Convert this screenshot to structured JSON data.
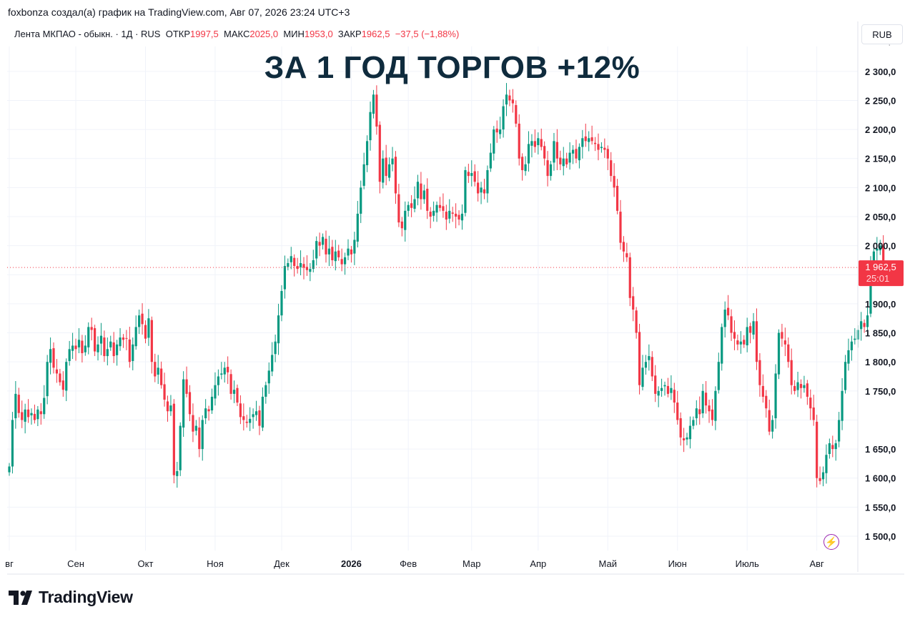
{
  "attribution": "foxbonza создал(а) график на TradingView.com, Авг 07, 2026 23:24 UTC+3",
  "legend": {
    "symbol": "Лента МКПАО - обыкн. · 1Д · RUS",
    "open_label": "ОТКР",
    "open_value": "1997,5",
    "high_label": "МАКС",
    "high_value": "2025,0",
    "low_label": "МИН",
    "low_value": "1953,0",
    "close_label": "ЗАКР",
    "close_value": "1962,5",
    "change": "−37,5 (−1,88%)"
  },
  "currency_button": "RUB",
  "scroll_marker": "˙",
  "headline": "ЗА 1 ГОД ТОРГОВ +12%",
  "brand": "TradingView",
  "colors": {
    "up": "#089981",
    "down": "#f23645",
    "grid": "#f0f3fa",
    "headline": "#0f2b3d"
  },
  "chart_data": {
    "type": "candlestick",
    "ylim": [
      1475,
      2330
    ],
    "y_ticks": [
      1500,
      1550,
      1600,
      1650,
      1700,
      1750,
      1800,
      1850,
      1900,
      1950,
      2000,
      2050,
      2100,
      2150,
      2200,
      2250,
      2300
    ],
    "y_tick_labels": [
      "1 500,0",
      "1 550,0",
      "1 600,0",
      "1 650,0",
      "",
      "1 750,0",
      "1 800,0",
      "1 850,0",
      "1 900,0",
      "",
      "2 000,0",
      "2 050,0",
      "2 100,0",
      "2 150,0",
      "2 200,0",
      "2 250,0",
      "2 300,0"
    ],
    "x_axis_labels": [
      {
        "label": "вг",
        "bar": 0
      },
      {
        "label": "Сен",
        "bar": 21
      },
      {
        "label": "Окт",
        "bar": 43
      },
      {
        "label": "Ноя",
        "bar": 65
      },
      {
        "label": "Дек",
        "bar": 86
      },
      {
        "label": "2026",
        "bar": 108
      },
      {
        "label": "Фев",
        "bar": 126
      },
      {
        "label": "Мар",
        "bar": 146
      },
      {
        "label": "Апр",
        "bar": 167
      },
      {
        "label": "Май",
        "bar": 189
      },
      {
        "label": "Июн",
        "bar": 211
      },
      {
        "label": "Июль",
        "bar": 233
      },
      {
        "label": "Авг",
        "bar": 255
      }
    ],
    "last_price": {
      "value": 1962.5,
      "label": "1 962,5",
      "countdown": "25:01"
    },
    "close": [
      1620,
      1700,
      1745,
      1712,
      1700,
      1718,
      1705,
      1712,
      1700,
      1718,
      1710,
      1738,
      1800,
      1822,
      1790,
      1780,
      1765,
      1752,
      1800,
      1822,
      1828,
      1822,
      1838,
      1815,
      1828,
      1860,
      1855,
      1818,
      1830,
      1845,
      1810,
      1822,
      1835,
      1810,
      1830,
      1842,
      1838,
      1840,
      1800,
      1830,
      1860,
      1880,
      1865,
      1840,
      1875,
      1800,
      1775,
      1790,
      1760,
      1735,
      1715,
      1725,
      1605,
      1612,
      1690,
      1770,
      1745,
      1710,
      1680,
      1690,
      1650,
      1700,
      1720,
      1715,
      1740,
      1760,
      1775,
      1780,
      1790,
      1782,
      1745,
      1752,
      1730,
      1705,
      1700,
      1695,
      1702,
      1710,
      1715,
      1690,
      1740,
      1760,
      1785,
      1812,
      1835,
      1880,
      1922,
      1965,
      1970,
      1982,
      1965,
      1960,
      1970,
      1962,
      1958,
      1960,
      1975,
      2008,
      2000,
      2015,
      1985,
      1995,
      1975,
      1990,
      1980,
      1968,
      1980,
      1995,
      1985,
      2010,
      2055,
      2100,
      2140,
      2180,
      2230,
      2260,
      2205,
      2110,
      2150,
      2120,
      2140,
      2150,
      2090,
      2040,
      2030,
      2060,
      2070,
      2065,
      2080,
      2110,
      2080,
      2095,
      2060,
      2050,
      2060,
      2070,
      2065,
      2060,
      2045,
      2060,
      2055,
      2050,
      2045,
      2055,
      2130,
      2120,
      2125,
      2110,
      2090,
      2100,
      2090,
      2130,
      2160,
      2200,
      2195,
      2200,
      2240,
      2260,
      2250,
      2245,
      2210,
      2150,
      2130,
      2140,
      2175,
      2180,
      2170,
      2185,
      2170,
      2150,
      2120,
      2140,
      2180,
      2150,
      2140,
      2150,
      2140,
      2160,
      2165,
      2150,
      2170,
      2185,
      2180,
      2185,
      2180,
      2175,
      2165,
      2170,
      2165,
      2150,
      2120,
      2100,
      2060,
      2005,
      1990,
      1980,
      1910,
      1890,
      1850,
      1760,
      1790,
      1800,
      1810,
      1775,
      1745,
      1750,
      1755,
      1760,
      1745,
      1755,
      1730,
      1700,
      1670,
      1665,
      1670,
      1690,
      1700,
      1720,
      1710,
      1750,
      1725,
      1715,
      1700,
      1750,
      1800,
      1860,
      1890,
      1880,
      1850,
      1840,
      1830,
      1835,
      1830,
      1860,
      1850,
      1870,
      1800,
      1760,
      1740,
      1720,
      1680,
      1700,
      1780,
      1850,
      1840,
      1830,
      1800,
      1760,
      1750,
      1765,
      1755,
      1760,
      1740,
      1720,
      1700,
      1600,
      1595,
      1610,
      1640,
      1660,
      1650,
      1660,
      1700,
      1750,
      1800,
      1820,
      1835,
      1840,
      1855,
      1870,
      1860,
      1880,
      1960,
      1990,
      1995,
      2000,
      1962.5
    ]
  }
}
